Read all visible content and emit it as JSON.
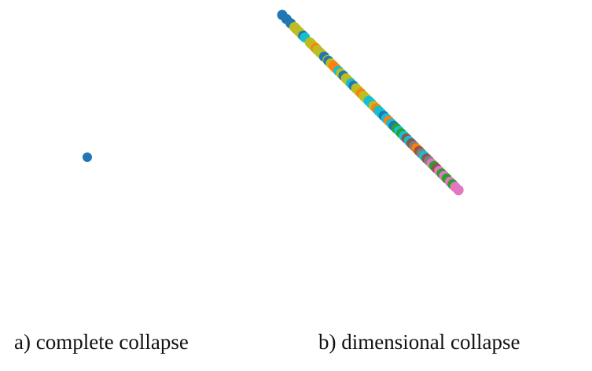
{
  "captions": {
    "a": "a) complete collapse",
    "b": "b) dimensional collapse"
  },
  "colors": {
    "blue": "#1f77b4",
    "orange": "#ff7f0e",
    "green": "#2ca02c",
    "brown": "#8c564b",
    "pink": "#e377c2",
    "gray": "#7f7f7f",
    "olive": "#bcbd22",
    "cyan": "#17becf"
  },
  "chart_data": [
    {
      "type": "scatter",
      "title": "a) complete collapse",
      "xlabel": "",
      "ylabel": "",
      "grid": false,
      "axes_visible": false,
      "xlim": [
        -1,
        1
      ],
      "ylim": [
        -1,
        1
      ],
      "points": [
        {
          "x": 0.0,
          "y": 0.0,
          "color": "blue"
        }
      ]
    },
    {
      "type": "scatter",
      "title": "b) dimensional collapse",
      "xlabel": "",
      "ylabel": "",
      "grid": false,
      "axes_visible": false,
      "xlim": [
        -1,
        1
      ],
      "ylim": [
        -1,
        1
      ],
      "points": [
        {
          "x": -1.0,
          "y": 1.0,
          "color": "blue"
        },
        {
          "x": -0.971,
          "y": 0.971,
          "color": "blue"
        },
        {
          "x": -0.941,
          "y": 0.941,
          "color": "blue"
        },
        {
          "x": -0.914,
          "y": 0.914,
          "color": "olive"
        },
        {
          "x": -0.9,
          "y": 0.9,
          "color": "olive"
        },
        {
          "x": -0.882,
          "y": 0.882,
          "color": "olive"
        },
        {
          "x": -0.865,
          "y": 0.865,
          "color": "olive"
        },
        {
          "x": -0.853,
          "y": 0.853,
          "color": "blue"
        },
        {
          "x": -0.841,
          "y": 0.841,
          "color": "cyan"
        },
        {
          "x": -0.806,
          "y": 0.806,
          "color": "olive"
        },
        {
          "x": -0.794,
          "y": 0.794,
          "color": "olive"
        },
        {
          "x": -0.776,
          "y": 0.776,
          "color": "olive"
        },
        {
          "x": -0.765,
          "y": 0.765,
          "color": "orange"
        },
        {
          "x": -0.753,
          "y": 0.753,
          "color": "olive"
        },
        {
          "x": -0.735,
          "y": 0.735,
          "color": "olive"
        },
        {
          "x": -0.718,
          "y": 0.718,
          "color": "olive"
        },
        {
          "x": -0.706,
          "y": 0.706,
          "color": "blue"
        },
        {
          "x": -0.682,
          "y": 0.682,
          "color": "olive"
        },
        {
          "x": -0.676,
          "y": 0.676,
          "color": "blue"
        },
        {
          "x": -0.659,
          "y": 0.659,
          "color": "olive"
        },
        {
          "x": -0.641,
          "y": 0.641,
          "color": "orange"
        },
        {
          "x": -0.624,
          "y": 0.624,
          "color": "orange"
        },
        {
          "x": -0.606,
          "y": 0.606,
          "color": "cyan"
        },
        {
          "x": -0.588,
          "y": 0.588,
          "color": "olive"
        },
        {
          "x": -0.571,
          "y": 0.571,
          "color": "blue"
        },
        {
          "x": -0.553,
          "y": 0.553,
          "color": "olive"
        },
        {
          "x": -0.535,
          "y": 0.535,
          "color": "olive"
        },
        {
          "x": -0.518,
          "y": 0.518,
          "color": "cyan"
        },
        {
          "x": -0.5,
          "y": 0.5,
          "color": "blue"
        },
        {
          "x": -0.482,
          "y": 0.482,
          "color": "olive"
        },
        {
          "x": -0.465,
          "y": 0.465,
          "color": "olive"
        },
        {
          "x": -0.447,
          "y": 0.447,
          "color": "orange"
        },
        {
          "x": -0.429,
          "y": 0.429,
          "color": "olive"
        },
        {
          "x": -0.412,
          "y": 0.412,
          "color": "olive"
        },
        {
          "x": -0.394,
          "y": 0.394,
          "color": "cyan"
        },
        {
          "x": -0.376,
          "y": 0.376,
          "color": "cyan"
        },
        {
          "x": -0.359,
          "y": 0.359,
          "color": "olive"
        },
        {
          "x": -0.341,
          "y": 0.341,
          "color": "orange"
        },
        {
          "x": -0.324,
          "y": 0.324,
          "color": "cyan"
        },
        {
          "x": -0.306,
          "y": 0.306,
          "color": "cyan"
        },
        {
          "x": -0.288,
          "y": 0.288,
          "color": "blue"
        },
        {
          "x": -0.271,
          "y": 0.271,
          "color": "cyan"
        },
        {
          "x": -0.253,
          "y": 0.253,
          "color": "orange"
        },
        {
          "x": -0.235,
          "y": 0.235,
          "color": "cyan"
        },
        {
          "x": -0.218,
          "y": 0.218,
          "color": "blue"
        },
        {
          "x": -0.2,
          "y": 0.2,
          "color": "green"
        },
        {
          "x": -0.182,
          "y": 0.182,
          "color": "cyan"
        },
        {
          "x": -0.165,
          "y": 0.165,
          "color": "green"
        },
        {
          "x": -0.147,
          "y": 0.147,
          "color": "cyan"
        },
        {
          "x": -0.129,
          "y": 0.129,
          "color": "brown"
        },
        {
          "x": -0.112,
          "y": 0.112,
          "color": "cyan"
        },
        {
          "x": -0.094,
          "y": 0.094,
          "color": "brown"
        },
        {
          "x": -0.076,
          "y": 0.076,
          "color": "gray"
        },
        {
          "x": -0.059,
          "y": 0.059,
          "color": "orange"
        },
        {
          "x": -0.041,
          "y": 0.041,
          "color": "brown"
        },
        {
          "x": -0.024,
          "y": 0.024,
          "color": "gray"
        },
        {
          "x": -0.006,
          "y": 0.006,
          "color": "cyan"
        },
        {
          "x": 0.012,
          "y": -0.012,
          "color": "brown"
        },
        {
          "x": 0.029,
          "y": -0.029,
          "color": "gray"
        },
        {
          "x": 0.047,
          "y": -0.047,
          "color": "pink"
        },
        {
          "x": 0.065,
          "y": -0.065,
          "color": "green"
        },
        {
          "x": 0.082,
          "y": -0.082,
          "color": "brown"
        },
        {
          "x": 0.1,
          "y": -0.1,
          "color": "pink"
        },
        {
          "x": 0.118,
          "y": -0.118,
          "color": "green"
        },
        {
          "x": 0.135,
          "y": -0.135,
          "color": "pink"
        },
        {
          "x": 0.153,
          "y": -0.153,
          "color": "green"
        },
        {
          "x": 0.176,
          "y": -0.176,
          "color": "pink"
        },
        {
          "x": 0.194,
          "y": -0.194,
          "color": "green"
        },
        {
          "x": 0.212,
          "y": -0.212,
          "color": "pink"
        },
        {
          "x": 0.235,
          "y": -0.235,
          "color": "pink"
        }
      ]
    }
  ]
}
